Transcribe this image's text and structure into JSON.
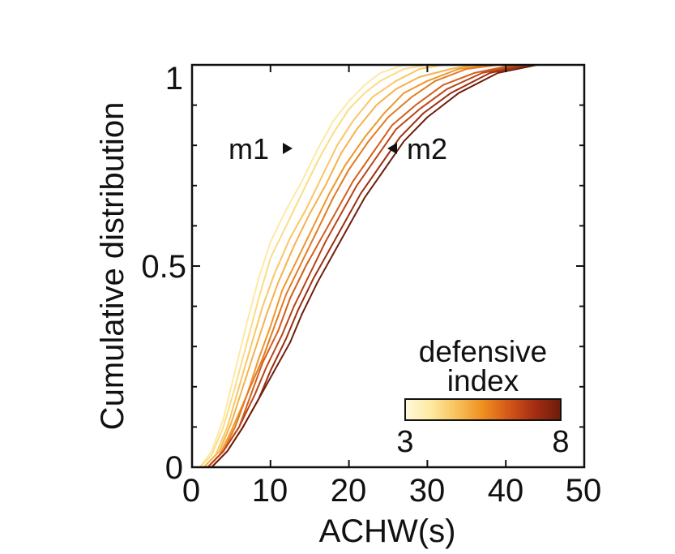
{
  "chart_data": {
    "type": "line",
    "xlabel": "ACHW(s)",
    "ylabel": "Cumulative distribution",
    "xlim": [
      0,
      50
    ],
    "ylim": [
      0,
      1
    ],
    "xticks": [
      0,
      10,
      20,
      30,
      40,
      50
    ],
    "xtick_labels": [
      "0",
      "10",
      "20",
      "30",
      "40",
      "50"
    ],
    "yticks_major": [
      0,
      0.5,
      1
    ],
    "ytick_labels": [
      "0",
      "0.5",
      "1"
    ],
    "yticks_minor": [
      0.1,
      0.2,
      0.3,
      0.4,
      0.6,
      0.7,
      0.8,
      0.9
    ],
    "annotations": [
      {
        "text": "m1",
        "arrow": "right",
        "x": 12.3,
        "y": 0.8
      },
      {
        "text": "m2",
        "arrow": "left",
        "x": 25.4,
        "y": 0.8
      }
    ],
    "colorbar": {
      "title_line1": "defensive",
      "title_line2": "index",
      "min_label": "3",
      "max_label": "8",
      "stops": [
        "#fff8dc",
        "#fde9a0",
        "#f8c15a",
        "#ef8f1f",
        "#d4561a",
        "#a42d12",
        "#6b1d0c"
      ]
    },
    "series": [
      {
        "name": "defensive index 3",
        "color": "#fde9a6",
        "x": [
          1.0,
          2.5,
          4.0,
          5.5,
          7.0,
          8.5,
          10.0,
          12.0,
          14.0,
          16.0,
          18.0,
          20.0,
          22.0,
          24.0,
          27.0,
          30.0
        ],
        "y": [
          0,
          0.04,
          0.12,
          0.24,
          0.36,
          0.47,
          0.56,
          0.64,
          0.71,
          0.79,
          0.86,
          0.91,
          0.95,
          0.98,
          1.0,
          1.0
        ]
      },
      {
        "name": "defensive index 3.5",
        "color": "#fcdc84",
        "x": [
          1.0,
          2.5,
          4.0,
          5.5,
          7.0,
          8.5,
          10.0,
          12.0,
          14.0,
          16.0,
          18.0,
          20.0,
          22.0,
          24.0,
          27.0,
          30.0,
          33.0
        ],
        "y": [
          0,
          0.03,
          0.1,
          0.2,
          0.31,
          0.42,
          0.52,
          0.6,
          0.68,
          0.76,
          0.83,
          0.89,
          0.93,
          0.96,
          0.99,
          1.0,
          1.0
        ]
      },
      {
        "name": "defensive index 4",
        "color": "#f9c766",
        "x": [
          1.5,
          3.0,
          4.5,
          6.0,
          7.5,
          9.0,
          10.5,
          12.5,
          14.5,
          16.5,
          18.5,
          20.5,
          23.0,
          26.0,
          29.0,
          32.0
        ],
        "y": [
          0,
          0.03,
          0.1,
          0.2,
          0.3,
          0.4,
          0.48,
          0.57,
          0.64,
          0.72,
          0.8,
          0.86,
          0.92,
          0.96,
          0.99,
          1.0
        ]
      },
      {
        "name": "defensive index 4.5",
        "color": "#f5b24c",
        "x": [
          1.5,
          3.5,
          5.0,
          6.5,
          8.0,
          9.5,
          11.0,
          13.0,
          15.0,
          17.0,
          19.0,
          21.0,
          23.5,
          26.0,
          29.0,
          33.0,
          36.0
        ],
        "y": [
          0,
          0.04,
          0.11,
          0.2,
          0.29,
          0.38,
          0.46,
          0.55,
          0.63,
          0.7,
          0.78,
          0.84,
          0.9,
          0.94,
          0.97,
          0.99,
          1.0
        ]
      },
      {
        "name": "defensive index 5",
        "color": "#ef972c",
        "x": [
          2.0,
          3.5,
          5.0,
          7.0,
          8.5,
          10.0,
          11.5,
          13.5,
          15.5,
          17.5,
          19.5,
          22.0,
          24.5,
          27.0,
          30.0,
          34.0,
          38.0
        ],
        "y": [
          0,
          0.03,
          0.09,
          0.18,
          0.27,
          0.35,
          0.44,
          0.52,
          0.6,
          0.68,
          0.75,
          0.82,
          0.88,
          0.93,
          0.96,
          0.99,
          1.0
        ]
      },
      {
        "name": "defensive index 5.5",
        "color": "#e27b22",
        "x": [
          2.0,
          4.0,
          5.5,
          7.0,
          9.0,
          10.5,
          12.0,
          14.0,
          16.0,
          18.0,
          20.0,
          22.5,
          25.0,
          28.0,
          31.0,
          35.0,
          39.0
        ],
        "y": [
          0,
          0.04,
          0.1,
          0.18,
          0.27,
          0.35,
          0.43,
          0.51,
          0.59,
          0.67,
          0.74,
          0.81,
          0.87,
          0.92,
          0.96,
          0.99,
          1.0
        ]
      },
      {
        "name": "defensive index 6",
        "color": "#d45f1a",
        "x": [
          2.0,
          4.0,
          6.0,
          7.5,
          9.0,
          11.0,
          12.5,
          14.5,
          16.5,
          18.5,
          20.5,
          23.0,
          25.5,
          28.5,
          32.0,
          36.0,
          41.0
        ],
        "y": [
          0,
          0.04,
          0.1,
          0.18,
          0.26,
          0.34,
          0.42,
          0.5,
          0.57,
          0.64,
          0.71,
          0.78,
          0.85,
          0.9,
          0.95,
          0.98,
          1.0
        ]
      },
      {
        "name": "defensive index 6.5",
        "color": "#bc4416",
        "x": [
          2.0,
          4.0,
          6.0,
          8.0,
          9.5,
          11.5,
          13.0,
          15.0,
          17.0,
          19.0,
          21.0,
          23.5,
          26.0,
          29.0,
          32.5,
          37.0,
          42.0
        ],
        "y": [
          0,
          0.04,
          0.1,
          0.18,
          0.25,
          0.33,
          0.4,
          0.48,
          0.56,
          0.63,
          0.7,
          0.77,
          0.84,
          0.89,
          0.94,
          0.98,
          1.0
        ]
      },
      {
        "name": "defensive index 7",
        "color": "#9d2f11",
        "x": [
          2.5,
          4.5,
          6.5,
          8.5,
          10.0,
          12.0,
          13.5,
          15.5,
          17.5,
          19.5,
          21.5,
          24.0,
          26.5,
          29.5,
          33.0,
          38.0,
          43.0
        ],
        "y": [
          0,
          0.04,
          0.1,
          0.17,
          0.24,
          0.32,
          0.39,
          0.47,
          0.54,
          0.61,
          0.68,
          0.75,
          0.82,
          0.88,
          0.93,
          0.98,
          1.0
        ]
      },
      {
        "name": "defensive index 8",
        "color": "#6e200d",
        "x": [
          2.5,
          4.5,
          6.5,
          8.5,
          10.5,
          12.5,
          14.0,
          16.0,
          18.0,
          20.0,
          22.0,
          24.5,
          27.0,
          30.0,
          34.0,
          39.0,
          44.0
        ],
        "y": [
          0,
          0.04,
          0.1,
          0.17,
          0.24,
          0.31,
          0.38,
          0.46,
          0.53,
          0.6,
          0.67,
          0.74,
          0.81,
          0.87,
          0.93,
          0.98,
          1.0
        ]
      }
    ]
  }
}
